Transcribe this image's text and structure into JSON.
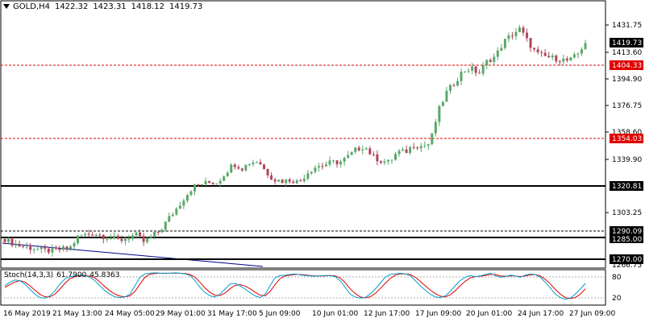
{
  "header": {
    "symbol": "GOLD,H4",
    "open": "1422.32",
    "high": "1423.31",
    "low": "1418.12",
    "close": "1419.73"
  },
  "price_axis": {
    "labels": [
      "1431.75",
      "1413.60",
      "1394.90",
      "1376.75",
      "1358.60",
      "1339.90",
      "1303.25",
      "1266.75"
    ],
    "current_price": "1419.73"
  },
  "levels": {
    "dashed": [
      {
        "label": "1404.33",
        "color": "#e00000"
      },
      {
        "label": "1354.03",
        "color": "#e00000"
      },
      {
        "label": "1290.09",
        "color": "#000000"
      }
    ],
    "solid": [
      "1320.81",
      "1285.00",
      "1270.00"
    ]
  },
  "stochastic": {
    "name": "Stoch(14,3,3)",
    "main": "61.7900",
    "signal": "45.8363",
    "axis_labels": [
      "80",
      "20"
    ],
    "main_color": "#00a0d0",
    "signal_color": "#e00000"
  },
  "time_axis": [
    "16 May 2019",
    "21 May 13:00",
    "24 May 05:00",
    "29 May 01:00",
    "31 May 17:00",
    "5 Jun 09:00",
    "10 Jun 01:00",
    "12 Jun 17:00",
    "17 Jun 09:00",
    "20 Jun 01:00",
    "24 Jun 17:00",
    "27 Jun 09:00"
  ],
  "colors": {
    "bull": "#5aa86a",
    "bear": "#b0455a",
    "trendline": "#00008b"
  },
  "chart_data": {
    "type": "candlestick",
    "symbol": "GOLD",
    "timeframe": "H4",
    "close_path": [
      1284,
      1281,
      1279,
      1278,
      1277,
      1276,
      1276,
      1277,
      1278,
      1286,
      1287,
      1288,
      1286,
      1285,
      1283,
      1285,
      1287,
      1282,
      1286,
      1290,
      1298,
      1305,
      1313,
      1320,
      1322,
      1323,
      1323,
      1330,
      1336,
      1333,
      1337,
      1338,
      1330,
      1325,
      1324,
      1325,
      1323,
      1330,
      1334,
      1335,
      1337,
      1337,
      1341,
      1346,
      1348,
      1341,
      1338,
      1337,
      1344,
      1344,
      1349,
      1348,
      1350,
      1372,
      1385,
      1392,
      1400,
      1402,
      1398,
      1407,
      1410,
      1420,
      1425,
      1429,
      1420,
      1412,
      1410,
      1409,
      1408,
      1407,
      1411,
      1420
    ],
    "stoch_main": [
      55,
      65,
      72,
      70,
      60,
      45,
      30,
      20,
      18,
      25,
      40,
      60,
      75,
      82,
      84,
      86,
      85,
      80,
      70,
      55,
      40,
      30,
      22,
      20,
      22,
      30,
      55,
      80,
      90,
      92,
      93,
      92,
      91,
      92,
      93,
      92,
      90,
      85,
      70,
      50,
      35,
      25,
      22,
      30,
      45,
      60,
      62,
      55,
      45,
      35,
      25,
      20,
      30,
      55,
      78,
      85,
      86,
      88,
      90,
      87,
      85,
      84,
      83,
      84,
      85,
      85,
      82,
      70,
      50,
      30,
      22,
      18,
      20,
      30,
      45,
      62,
      80,
      88,
      90,
      92,
      90,
      85,
      70,
      55,
      42,
      30,
      22,
      20,
      25,
      38,
      55,
      70,
      80,
      85,
      82,
      84,
      88,
      92,
      85,
      80,
      82,
      86,
      84,
      80,
      86,
      90,
      88,
      80,
      65,
      48,
      30,
      20,
      15,
      18,
      30,
      45,
      62
    ],
    "stoch_signal": [
      50,
      58,
      66,
      70,
      66,
      55,
      42,
      30,
      22,
      22,
      30,
      45,
      62,
      76,
      82,
      84,
      85,
      83,
      78,
      66,
      52,
      40,
      30,
      24,
      22,
      25,
      38,
      60,
      80,
      89,
      91,
      92,
      92,
      92,
      92,
      92,
      91,
      88,
      80,
      65,
      48,
      35,
      27,
      26,
      33,
      46,
      56,
      58,
      54,
      46,
      36,
      27,
      25,
      38,
      58,
      76,
      84,
      86,
      88,
      88,
      87,
      85,
      84,
      84,
      84,
      85,
      84,
      78,
      64,
      46,
      32,
      22,
      19,
      22,
      32,
      46,
      62,
      76,
      86,
      90,
      90,
      88,
      80,
      68,
      55,
      42,
      32,
      24,
      22,
      28,
      40,
      55,
      68,
      78,
      82,
      83,
      85,
      88,
      88,
      84,
      83,
      84,
      84,
      82,
      84,
      87,
      88,
      84,
      74,
      60,
      44,
      30,
      20,
      17,
      20,
      30,
      46
    ]
  }
}
